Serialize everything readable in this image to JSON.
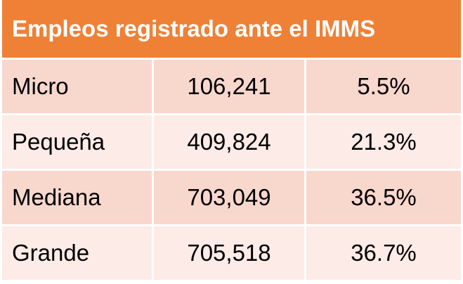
{
  "table": {
    "title": "Empleos registrado ante el IMMS",
    "rows": [
      {
        "name": "Micro",
        "count": "106,241",
        "percent": "5.5%"
      },
      {
        "name": "Pequeña",
        "count": "409,824",
        "percent": "21.3%"
      },
      {
        "name": "Mediana",
        "count": "703,049",
        "percent": "36.5%"
      },
      {
        "name": "Grande",
        "count": "705,518",
        "percent": "36.7%"
      }
    ]
  },
  "colors": {
    "header_bg": "#ee8136",
    "header_text": "#ffffff",
    "row_dark": "#f8d7cd",
    "row_light": "#fcebe7",
    "divider": "#ffffff"
  }
}
